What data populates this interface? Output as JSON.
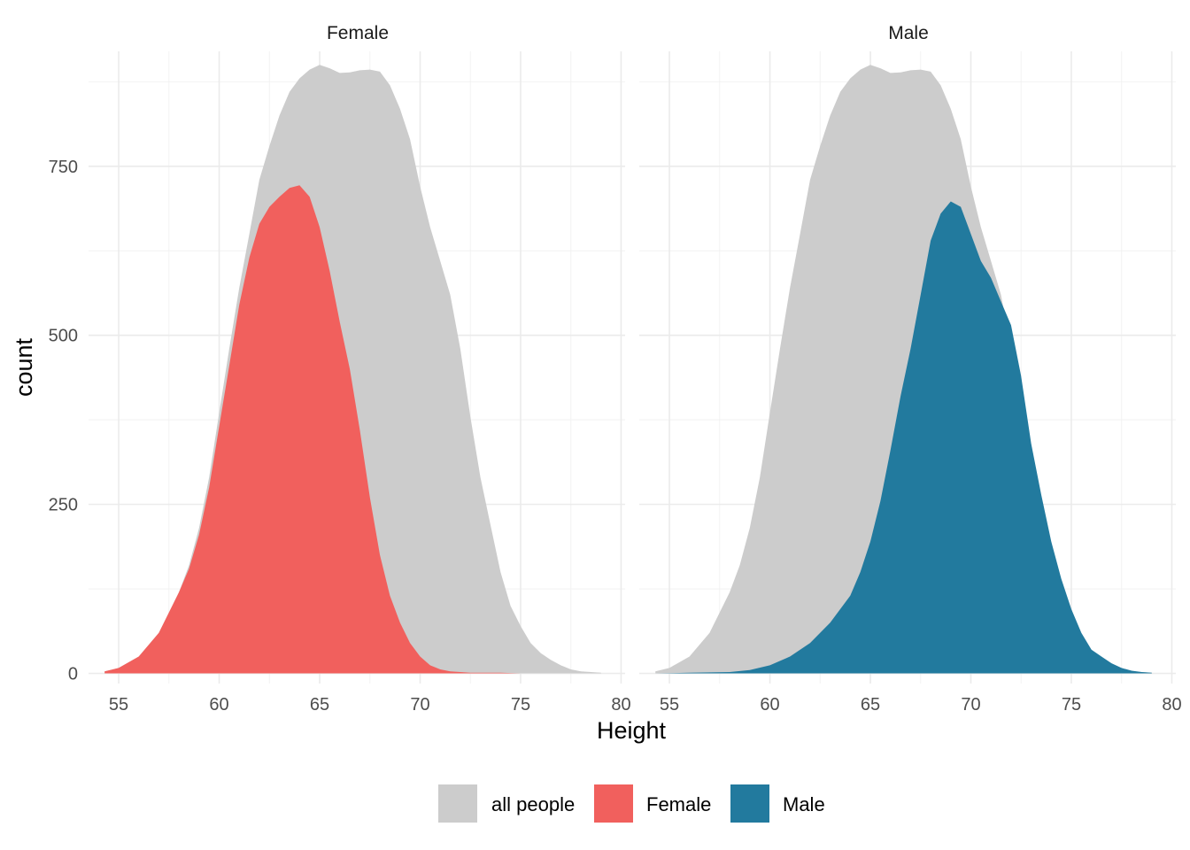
{
  "chart_data": {
    "type": "area",
    "facet_by": "sex",
    "facets": [
      "Female",
      "Male"
    ],
    "xlabel": "Height",
    "ylabel": "count",
    "xlim": [
      53.5,
      80.2
    ],
    "ylim": [
      -15,
      920
    ],
    "x_ticks": [
      55,
      60,
      65,
      70,
      75,
      80
    ],
    "y_ticks": [
      0,
      250,
      500,
      750
    ],
    "grid": true,
    "legend_position": "bottom",
    "legend": [
      {
        "label": "all people",
        "color": "#cccccc"
      },
      {
        "label": "Female",
        "color": "#f1605d"
      },
      {
        "label": "Male",
        "color": "#227a9e"
      }
    ],
    "background_series": {
      "name": "all people",
      "color": "#cccccc",
      "x": [
        54.3,
        55,
        56,
        57,
        58,
        58.5,
        59,
        59.5,
        60,
        60.5,
        61,
        61.5,
        62,
        62.5,
        63,
        63.5,
        64,
        64.5,
        65,
        65.5,
        66,
        66.5,
        67,
        67.5,
        68,
        68.5,
        69,
        69.5,
        70,
        70.5,
        71,
        71.5,
        72,
        72.5,
        73,
        73.5,
        74,
        74.5,
        75,
        75.5,
        76,
        76.5,
        77,
        77.5,
        78,
        78.5,
        79
      ],
      "y": [
        3,
        8,
        25,
        60,
        120,
        160,
        215,
        290,
        385,
        480,
        570,
        650,
        730,
        780,
        825,
        860,
        880,
        893,
        900,
        895,
        888,
        889,
        892,
        893,
        890,
        870,
        835,
        790,
        720,
        660,
        610,
        560,
        480,
        380,
        290,
        220,
        150,
        100,
        70,
        45,
        30,
        20,
        12,
        6,
        3,
        2,
        1
      ]
    },
    "series": [
      {
        "name": "Female",
        "color": "#f1605d",
        "x": [
          54.3,
          55,
          56,
          57,
          58,
          58.5,
          59,
          59.5,
          60,
          60.5,
          61,
          61.5,
          62,
          62.5,
          63,
          63.5,
          64,
          64.5,
          65,
          65.5,
          66,
          66.5,
          67,
          67.5,
          68,
          68.5,
          69,
          69.5,
          70,
          70.5,
          71,
          71.5,
          72,
          72.5,
          73,
          74,
          75,
          76,
          77,
          78,
          79
        ],
        "y": [
          3,
          8,
          25,
          60,
          120,
          155,
          205,
          275,
          365,
          455,
          545,
          615,
          665,
          690,
          705,
          718,
          722,
          705,
          660,
          595,
          520,
          450,
          360,
          260,
          175,
          115,
          75,
          45,
          25,
          12,
          6,
          3,
          2,
          1,
          1,
          1,
          0,
          0,
          0,
          0,
          0
        ]
      },
      {
        "name": "Male",
        "color": "#227a9e",
        "x": [
          54.3,
          56,
          58,
          59,
          60,
          61,
          62,
          63,
          64,
          64.5,
          65,
          65.5,
          66,
          66.5,
          67,
          67.5,
          68,
          68.5,
          69,
          69.5,
          70,
          70.5,
          71,
          71.5,
          72,
          72.5,
          73,
          73.5,
          74,
          74.5,
          75,
          75.5,
          76,
          76.5,
          77,
          77.5,
          78,
          78.5,
          79
        ],
        "y": [
          0,
          1,
          2,
          5,
          12,
          25,
          45,
          75,
          115,
          150,
          195,
          255,
          330,
          410,
          480,
          560,
          640,
          680,
          698,
          690,
          650,
          610,
          585,
          550,
          515,
          440,
          340,
          265,
          195,
          140,
          95,
          60,
          35,
          25,
          15,
          8,
          4,
          2,
          1
        ]
      }
    ]
  }
}
